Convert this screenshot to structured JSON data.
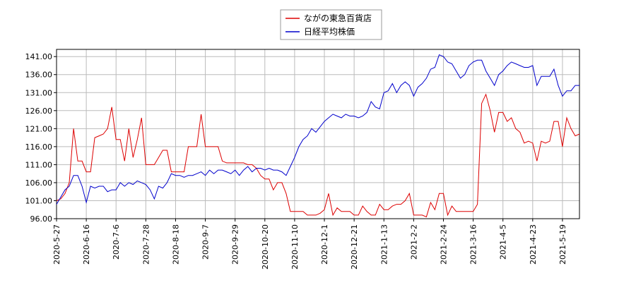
{
  "chart_data": {
    "type": "line",
    "categories": [
      "2020-5-27",
      null,
      null,
      null,
      null,
      null,
      null,
      "2020-6-16",
      null,
      null,
      null,
      null,
      null,
      null,
      "2020-7-6",
      null,
      null,
      null,
      null,
      null,
      null,
      "2020-7-28",
      null,
      null,
      null,
      null,
      null,
      null,
      "2020-8-18",
      null,
      null,
      null,
      null,
      null,
      null,
      "2020-9-7",
      null,
      null,
      null,
      null,
      null,
      null,
      "2020-9-29",
      null,
      null,
      null,
      null,
      null,
      null,
      "2020-10-20",
      null,
      null,
      null,
      null,
      null,
      null,
      "2020-11-10",
      null,
      null,
      null,
      null,
      null,
      null,
      "2020-12-1",
      null,
      null,
      null,
      null,
      null,
      null,
      "2020-12-21",
      null,
      null,
      null,
      null,
      null,
      null,
      "2021-1-13",
      null,
      null,
      null,
      null,
      null,
      null,
      "2021-2-2",
      null,
      null,
      null,
      null,
      null,
      null,
      "2021-2-24",
      null,
      null,
      null,
      null,
      null,
      null,
      "2021-3-16",
      null,
      null,
      null,
      null,
      null,
      null,
      "2021-4-5",
      null,
      null,
      null,
      null,
      null,
      null,
      "2021-4-23",
      null,
      null,
      null,
      null,
      null,
      null,
      "2021-5-19",
      null,
      null,
      null,
      null
    ],
    "series": [
      {
        "name": "ながの東急百貨店",
        "color": "#dd0000",
        "values": [
          101,
          101.5,
          103,
          106,
          121,
          112,
          112,
          109,
          109,
          118.5,
          119,
          119.5,
          121,
          127,
          118,
          118,
          112,
          121,
          113,
          118,
          124,
          111,
          111,
          111,
          113,
          115,
          115,
          109,
          109,
          109,
          109,
          116,
          116,
          116,
          125,
          116,
          116,
          116,
          116,
          112,
          111.5,
          111.5,
          111.5,
          111.5,
          111.5,
          111,
          111,
          110,
          108,
          107,
          107,
          104,
          106,
          106,
          103,
          98,
          98,
          98,
          98,
          97,
          97,
          97,
          97.5,
          98.5,
          103,
          97,
          99,
          98,
          98,
          98,
          97,
          97,
          99.5,
          98,
          97,
          97,
          100,
          98.5,
          98.5,
          99.5,
          100,
          100,
          101,
          103,
          97,
          97,
          97,
          96.5,
          100.5,
          98.5,
          103,
          103,
          97,
          99.5,
          98,
          98,
          98,
          98,
          98,
          100,
          128,
          130.5,
          126,
          120,
          125.5,
          125.5,
          123,
          124,
          121,
          120,
          117,
          117.5,
          117,
          112,
          117.5,
          117,
          117.5,
          123,
          123,
          116,
          124,
          121,
          119,
          119.5
        ]
      },
      {
        "name": "日経平均株価",
        "color": "#0000cc",
        "values": [
          100,
          102,
          104,
          105,
          108,
          108,
          105,
          100.5,
          105,
          104.5,
          105,
          105,
          103.5,
          104,
          104,
          106,
          105,
          106,
          105.5,
          106.5,
          106,
          105.5,
          104,
          101.5,
          105,
          104.5,
          106,
          108.5,
          108,
          108,
          107.5,
          108,
          108,
          108.5,
          109,
          108,
          109.5,
          108.5,
          109.5,
          109.5,
          109,
          108.5,
          109.5,
          108,
          109.5,
          110.5,
          109,
          110,
          110,
          109.5,
          110,
          109.5,
          109.5,
          109,
          108,
          110.5,
          113,
          116,
          118,
          119,
          121,
          120,
          121.5,
          123,
          124,
          125,
          124.5,
          124,
          125,
          124.5,
          124.5,
          124,
          124.5,
          125.5,
          128.5,
          127,
          126.5,
          131,
          131.5,
          133.5,
          131,
          133,
          134,
          133,
          130,
          132.5,
          133.5,
          135,
          137.5,
          138,
          141.5,
          141,
          139.5,
          139,
          137,
          135,
          136,
          138.5,
          139.5,
          140,
          140,
          137,
          135,
          133,
          136,
          137,
          138.5,
          139.5,
          139,
          138.5,
          138,
          138,
          138.5,
          133,
          135.5,
          135.5,
          135.5,
          137.5,
          133,
          130,
          131.5,
          131.5,
          133,
          133
        ]
      }
    ],
    "ylim": [
      96,
      143
    ],
    "yticks": [
      {
        "value": 96,
        "label": "96.00"
      },
      {
        "value": 101,
        "label": "101.00"
      },
      {
        "value": 106,
        "label": "106.00"
      },
      {
        "value": 111,
        "label": "111.00"
      },
      {
        "value": 116,
        "label": "116.00"
      },
      {
        "value": 121,
        "label": "121.00"
      },
      {
        "value": 126,
        "label": "126.00"
      },
      {
        "value": 131,
        "label": "131.00"
      },
      {
        "value": 136,
        "label": "136.00"
      },
      {
        "value": 141,
        "label": "141.00"
      }
    ],
    "grid": true
  }
}
